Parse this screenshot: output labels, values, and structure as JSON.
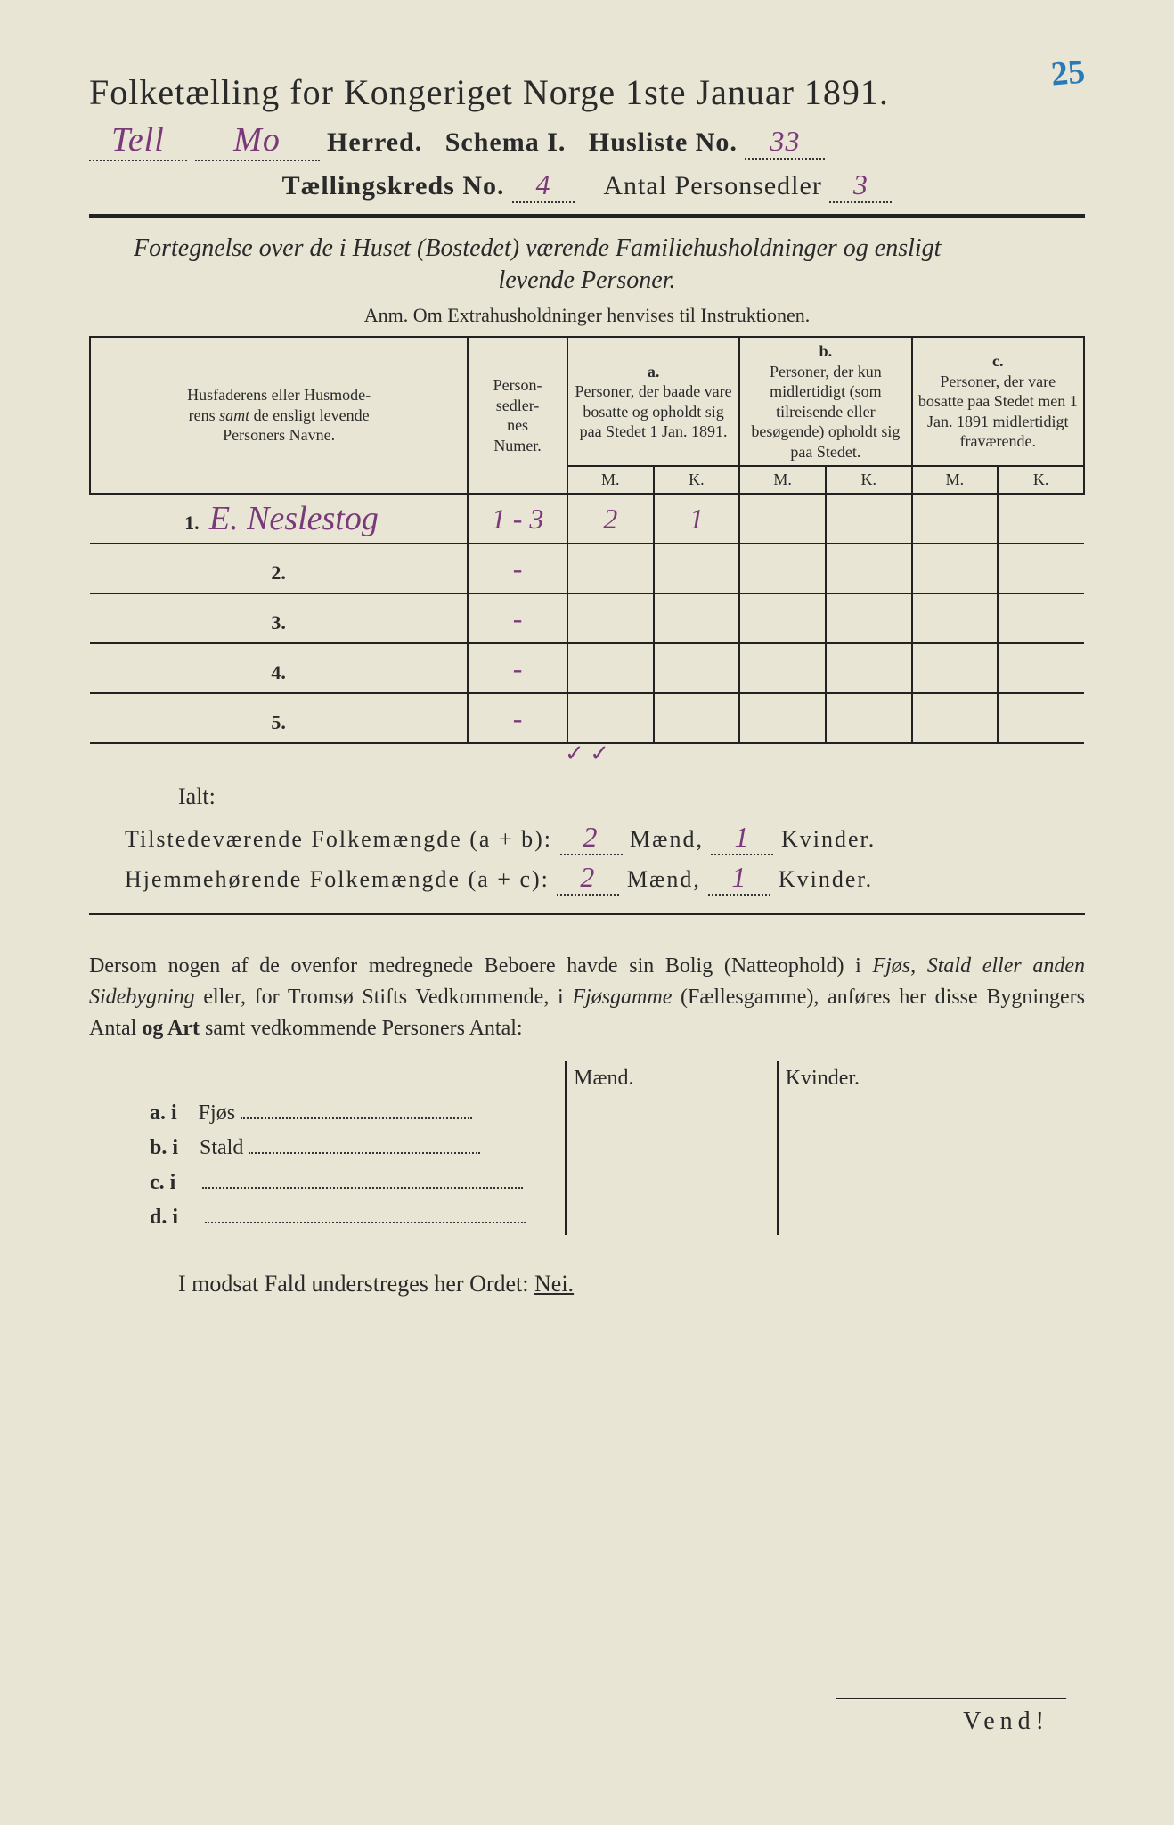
{
  "colors": {
    "paper": "#e8e5d4",
    "ink": "#2a2a2a",
    "handwriting": "#7a3a7a",
    "pencil_blue": "#2a7ab8"
  },
  "page_annotation": "25",
  "title": "Folketælling for Kongeriget Norge 1ste Januar 1891.",
  "header": {
    "herred_hw1": "Tell",
    "herred_hw2": "Mo",
    "herred_label": "Herred.",
    "schema_label": "Schema I.",
    "husliste_label": "Husliste No.",
    "husliste_no": "33",
    "kreds_label": "Tællingskreds No.",
    "kreds_no": "4",
    "person_label": "Antal Personsedler",
    "person_no": "3"
  },
  "section_desc_1": "Fortegnelse over de i Huset (Bostedet) værende Familiehusholdninger og ensligt",
  "section_desc_2": "levende Personer.",
  "anm": "Anm.  Om Extrahusholdninger henvises til Instruktionen.",
  "table": {
    "col_name": "Husfaderens eller Husmoderens samt de ensligt levende Personers Navne.",
    "col_num": "Person-\nsedler-\nnes\nNumer.",
    "col_a_letter": "a.",
    "col_a": "Personer, der baade vare bosatte og opholdt sig paa Stedet 1 Jan. 1891.",
    "col_b_letter": "b.",
    "col_b": "Personer, der kun midlertidigt (som tilreisende eller besøgende) opholdt sig paa Stedet.",
    "col_c_letter": "c.",
    "col_c": "Personer, der vare bosatte paa Stedet men 1 Jan. 1891 midlertidigt fraværende.",
    "mk_m": "M.",
    "mk_k": "K.",
    "rows": [
      {
        "n": "1.",
        "name": "E. Neslestog",
        "num": "1 - 3",
        "a_m": "2",
        "a_k": "1",
        "b_m": "",
        "b_k": "",
        "c_m": "",
        "c_k": ""
      },
      {
        "n": "2.",
        "name": "",
        "num": "-",
        "a_m": "",
        "a_k": "",
        "b_m": "",
        "b_k": "",
        "c_m": "",
        "c_k": ""
      },
      {
        "n": "3.",
        "name": "",
        "num": "-",
        "a_m": "",
        "a_k": "",
        "b_m": "",
        "b_k": "",
        "c_m": "",
        "c_k": ""
      },
      {
        "n": "4.",
        "name": "",
        "num": "-",
        "a_m": "",
        "a_k": "",
        "b_m": "",
        "b_k": "",
        "c_m": "",
        "c_k": ""
      },
      {
        "n": "5.",
        "name": "",
        "num": "-",
        "a_m": "",
        "a_k": "",
        "b_m": "",
        "b_k": "",
        "c_m": "",
        "c_k": ""
      }
    ],
    "checks": "✓ ✓"
  },
  "ialt": "Ialt:",
  "totals": {
    "line1_label": "Tilstedeværende Folkemængde (a + b):",
    "line1_m": "2",
    "line1_mlabel": "Mænd,",
    "line1_k": "1",
    "line1_klabel": "Kvinder.",
    "line2_label": "Hjemmehørende Folkemængde (a + c):",
    "line2_m": "2",
    "line2_mlabel": "Mænd,",
    "line2_k": "1",
    "line2_klabel": "Kvinder."
  },
  "para": "Dersom nogen af de ovenfor medregnede Beboere havde sin Bolig (Natteophold) i Fjøs, Stald eller anden Sidebygning eller, for Tromsø Stifts Vedkommende, i Fjøsgamme (Fællesgamme), anføres her disse Bygningers Antal og Art samt vedkommende Personers Antal:",
  "bldg": {
    "head_m": "Mænd.",
    "head_k": "Kvinder.",
    "rows": [
      {
        "l": "a.  i",
        "t": "Fjøs"
      },
      {
        "l": "b.  i",
        "t": "Stald"
      },
      {
        "l": "c.  i",
        "t": ""
      },
      {
        "l": "d.  i",
        "t": ""
      }
    ]
  },
  "nei_line_pre": "I modsat Fald understreges her Ordet:",
  "nei": "Nei.",
  "vend": "Vend!"
}
